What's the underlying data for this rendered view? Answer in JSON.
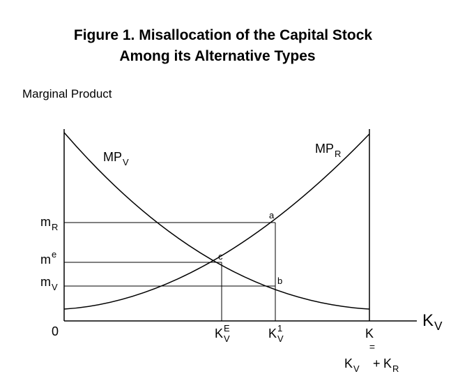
{
  "title": {
    "line1": "Figure 1.  Misallocation of the Capital Stock",
    "line2": "Among its Alternative Types"
  },
  "y_axis": {
    "label": "Marginal Product",
    "ticks": [
      {
        "base": "m",
        "sub": "R"
      },
      {
        "base": "m",
        "sup": "e"
      },
      {
        "base": "m",
        "sub": "V"
      },
      "0"
    ]
  },
  "x_axis": {
    "label": {
      "base": "K",
      "sub": "V"
    },
    "ticks": [
      {
        "base": "K",
        "sub": "V",
        "sup": "E"
      },
      {
        "base": "K",
        "sub": "V",
        "sup": "1"
      },
      "K"
    ],
    "identity": {
      "sign": "=",
      "left": {
        "base": "K",
        "sub": "V"
      },
      "plus": "+",
      "right": {
        "base": "K",
        "sub": "R"
      }
    }
  },
  "curves": [
    {
      "base": "MP",
      "sub": "V"
    },
    {
      "base": "MP",
      "sub": "R"
    }
  ],
  "points": [
    "a",
    "b",
    "c"
  ]
}
